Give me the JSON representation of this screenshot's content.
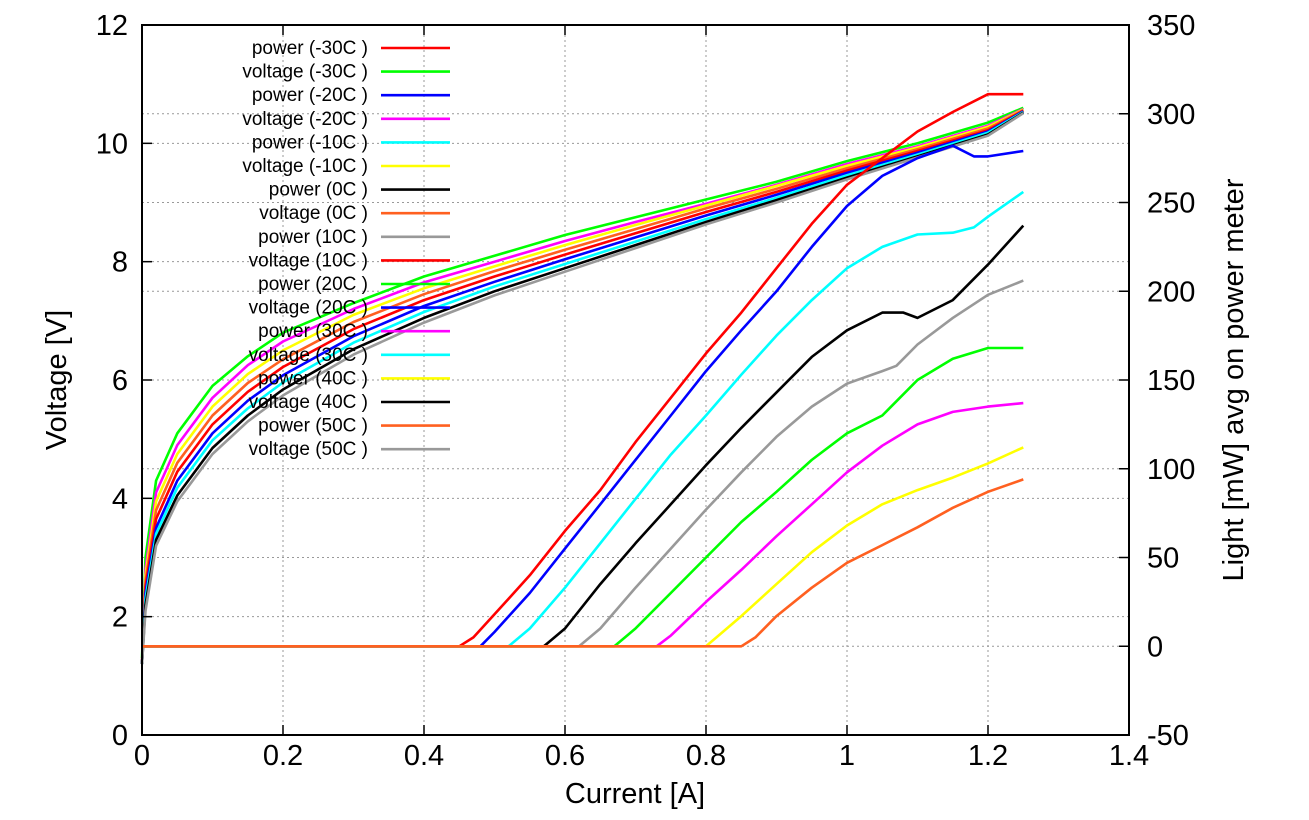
{
  "chart_data": {
    "type": "line",
    "title": "",
    "xlabel": "Current [A]",
    "ylabel": "Voltage [V]",
    "y2label": "Light [mW] avg on power meter",
    "xlim": [
      0,
      1.4
    ],
    "ylim": [
      0,
      12
    ],
    "y2lim": [
      -50,
      350
    ],
    "grid": true,
    "legend_position": "top-left",
    "x_ticks": [
      0,
      0.2,
      0.4,
      0.6,
      0.8,
      1,
      1.2,
      1.4
    ],
    "x_tick_labels": [
      "0",
      "0.2",
      "0.4",
      "0.6",
      "0.8",
      "1",
      "1.2",
      "1.4"
    ],
    "y_ticks": [
      0,
      2,
      4,
      6,
      8,
      10,
      12
    ],
    "y_tick_labels": [
      "0",
      "2",
      "4",
      "6",
      "8",
      "10",
      "12"
    ],
    "y2_ticks": [
      -50,
      0,
      50,
      100,
      150,
      200,
      250,
      300,
      350
    ],
    "y2_tick_labels": [
      "-50",
      "0",
      "50",
      "100",
      "150",
      "200",
      "250",
      "300",
      "350"
    ],
    "series": [
      {
        "name": "power (-30C )",
        "axis": "y2",
        "color": "#ff0000",
        "x": [
          0,
          0.45,
          0.47,
          0.5,
          0.55,
          0.6,
          0.65,
          0.7,
          0.75,
          0.8,
          0.85,
          0.9,
          0.95,
          1.0,
          1.05,
          1.1,
          1.15,
          1.2,
          1.25
        ],
        "y": [
          0,
          0,
          5,
          18,
          40,
          65,
          88,
          115,
          140,
          165,
          188,
          213,
          238,
          260,
          275,
          290,
          301,
          311,
          311
        ]
      },
      {
        "name": "voltage (-30C )",
        "axis": "y",
        "color": "#00ff00",
        "x": [
          0,
          0.005,
          0.02,
          0.05,
          0.1,
          0.15,
          0.2,
          0.3,
          0.4,
          0.5,
          0.6,
          0.7,
          0.8,
          0.9,
          1.0,
          1.1,
          1.2,
          1.25
        ],
        "y": [
          1.3,
          3.0,
          4.3,
          5.1,
          5.9,
          6.4,
          6.8,
          7.3,
          7.75,
          8.1,
          8.45,
          8.75,
          9.05,
          9.35,
          9.7,
          10.0,
          10.35,
          10.6
        ]
      },
      {
        "name": "power (-20C )",
        "axis": "y2",
        "color": "#0000ff",
        "x": [
          0,
          0.48,
          0.5,
          0.55,
          0.6,
          0.65,
          0.7,
          0.75,
          0.8,
          0.85,
          0.9,
          0.95,
          1.0,
          1.05,
          1.1,
          1.15,
          1.18,
          1.2,
          1.25
        ],
        "y": [
          0,
          0,
          8,
          30,
          55,
          80,
          105,
          130,
          155,
          178,
          200,
          225,
          248,
          265,
          275,
          282,
          276,
          276,
          279
        ]
      },
      {
        "name": "voltage (-20C )",
        "axis": "y",
        "color": "#ff00ff",
        "x": [
          0,
          0.005,
          0.02,
          0.05,
          0.1,
          0.15,
          0.2,
          0.3,
          0.4,
          0.5,
          0.6,
          0.7,
          0.8,
          0.9,
          1.0,
          1.1,
          1.2,
          1.25
        ],
        "y": [
          1.2,
          2.8,
          4.1,
          4.9,
          5.7,
          6.25,
          6.65,
          7.2,
          7.65,
          8.0,
          8.35,
          8.67,
          8.98,
          9.3,
          9.65,
          9.95,
          10.3,
          10.58
        ]
      },
      {
        "name": "power (-10C )",
        "axis": "y2",
        "color": "#00ffff",
        "x": [
          0,
          0.52,
          0.55,
          0.6,
          0.65,
          0.7,
          0.75,
          0.8,
          0.85,
          0.9,
          0.95,
          1.0,
          1.05,
          1.1,
          1.15,
          1.18,
          1.2,
          1.25
        ],
        "y": [
          0,
          0,
          10,
          33,
          58,
          83,
          108,
          130,
          153,
          175,
          195,
          213,
          225,
          232,
          233,
          236,
          242,
          256
        ]
      },
      {
        "name": "voltage (-10C )",
        "axis": "y",
        "color": "#ffff00",
        "x": [
          0,
          0.005,
          0.02,
          0.05,
          0.1,
          0.15,
          0.2,
          0.3,
          0.4,
          0.5,
          0.6,
          0.7,
          0.8,
          0.9,
          1.0,
          1.1,
          1.2,
          1.25
        ],
        "y": [
          1.2,
          2.7,
          3.95,
          4.75,
          5.55,
          6.1,
          6.5,
          7.1,
          7.55,
          7.92,
          8.28,
          8.62,
          8.95,
          9.28,
          9.62,
          9.93,
          10.28,
          10.57
        ]
      },
      {
        "name": "power (0C )",
        "axis": "y2",
        "color": "#000000",
        "x": [
          0,
          0.57,
          0.6,
          0.65,
          0.7,
          0.75,
          0.8,
          0.85,
          0.9,
          0.95,
          1.0,
          1.05,
          1.08,
          1.1,
          1.15,
          1.2,
          1.25
        ],
        "y": [
          0,
          0,
          10,
          35,
          58,
          80,
          102,
          123,
          143,
          163,
          178,
          188,
          188,
          185,
          195,
          215,
          237
        ]
      },
      {
        "name": "voltage (0C )",
        "axis": "y",
        "color": "#ff6020",
        "x": [
          0,
          0.005,
          0.02,
          0.05,
          0.1,
          0.15,
          0.2,
          0.3,
          0.4,
          0.5,
          0.6,
          0.7,
          0.8,
          0.9,
          1.0,
          1.1,
          1.2,
          1.25
        ],
        "y": [
          1.2,
          2.6,
          3.8,
          4.6,
          5.4,
          5.95,
          6.35,
          6.98,
          7.45,
          7.84,
          8.2,
          8.55,
          8.9,
          9.23,
          9.58,
          9.9,
          10.25,
          10.56
        ]
      },
      {
        "name": "power (10C )",
        "axis": "y2",
        "color": "#999999",
        "x": [
          0,
          0.62,
          0.65,
          0.7,
          0.75,
          0.8,
          0.85,
          0.9,
          0.95,
          1.0,
          1.05,
          1.07,
          1.1,
          1.15,
          1.2,
          1.25
        ],
        "y": [
          0,
          0,
          10,
          33,
          55,
          77,
          98,
          118,
          135,
          148,
          155,
          158,
          170,
          185,
          198,
          206
        ]
      },
      {
        "name": "voltage (10C )",
        "axis": "y",
        "color": "#ff0000",
        "x": [
          0,
          0.005,
          0.02,
          0.05,
          0.1,
          0.15,
          0.2,
          0.3,
          0.4,
          0.5,
          0.6,
          0.7,
          0.8,
          0.9,
          1.0,
          1.1,
          1.2,
          1.25
        ],
        "y": [
          1.2,
          2.5,
          3.65,
          4.45,
          5.25,
          5.8,
          6.22,
          6.86,
          7.35,
          7.75,
          8.12,
          8.48,
          8.84,
          9.18,
          9.54,
          9.87,
          10.22,
          10.55
        ]
      },
      {
        "name": "power (20C )",
        "axis": "y2",
        "color": "#00ff00",
        "x": [
          0,
          0.67,
          0.7,
          0.75,
          0.8,
          0.85,
          0.9,
          0.95,
          1.0,
          1.05,
          1.1,
          1.15,
          1.2,
          1.25
        ],
        "y": [
          0,
          0,
          10,
          30,
          50,
          70,
          87,
          105,
          120,
          130,
          150,
          162,
          168,
          168
        ]
      },
      {
        "name": "voltage (20C )",
        "axis": "y",
        "color": "#0000ff",
        "x": [
          0,
          0.005,
          0.02,
          0.05,
          0.1,
          0.15,
          0.2,
          0.3,
          0.4,
          0.5,
          0.6,
          0.7,
          0.8,
          0.9,
          1.0,
          1.1,
          1.2,
          1.25
        ],
        "y": [
          1.2,
          2.4,
          3.5,
          4.3,
          5.1,
          5.65,
          6.08,
          6.74,
          7.25,
          7.66,
          8.04,
          8.41,
          8.78,
          9.13,
          9.5,
          9.84,
          10.2,
          10.54
        ]
      },
      {
        "name": "power (30C )",
        "axis": "y2",
        "color": "#ff00ff",
        "x": [
          0,
          0.73,
          0.75,
          0.8,
          0.85,
          0.9,
          0.95,
          1.0,
          1.05,
          1.1,
          1.15,
          1.2,
          1.25
        ],
        "y": [
          0,
          0,
          6,
          25,
          43,
          62,
          80,
          98,
          113,
          125,
          132,
          135,
          137
        ]
      },
      {
        "name": "voltage (30C )",
        "axis": "y",
        "color": "#00ffff",
        "x": [
          0,
          0.005,
          0.02,
          0.05,
          0.1,
          0.15,
          0.2,
          0.3,
          0.4,
          0.5,
          0.6,
          0.7,
          0.8,
          0.9,
          1.0,
          1.1,
          1.2,
          1.25
        ],
        "y": [
          1.2,
          2.3,
          3.4,
          4.18,
          4.98,
          5.52,
          5.96,
          6.63,
          7.15,
          7.58,
          7.96,
          8.34,
          8.72,
          9.08,
          9.46,
          9.81,
          10.18,
          10.53
        ]
      },
      {
        "name": "power (40C )",
        "axis": "y2",
        "color": "#ffff00",
        "x": [
          0,
          0.8,
          0.85,
          0.9,
          0.95,
          1.0,
          1.05,
          1.1,
          1.15,
          1.2,
          1.25
        ],
        "y": [
          0,
          0,
          17,
          35,
          53,
          68,
          80,
          88,
          95,
          103,
          112
        ]
      },
      {
        "name": "voltage (40C )",
        "axis": "y",
        "color": "#000000",
        "x": [
          0,
          0.005,
          0.02,
          0.05,
          0.1,
          0.15,
          0.2,
          0.3,
          0.4,
          0.5,
          0.6,
          0.7,
          0.8,
          0.9,
          1.0,
          1.1,
          1.2,
          1.25
        ],
        "y": [
          1.2,
          2.2,
          3.3,
          4.05,
          4.85,
          5.4,
          5.84,
          6.52,
          7.05,
          7.5,
          7.89,
          8.28,
          8.67,
          9.04,
          9.42,
          9.78,
          10.15,
          10.52
        ]
      },
      {
        "name": "power (50C )",
        "axis": "y2",
        "color": "#ff6020",
        "x": [
          0,
          0.85,
          0.87,
          0.9,
          0.95,
          1.0,
          1.05,
          1.1,
          1.15,
          1.2,
          1.25
        ],
        "y": [
          0,
          0,
          5,
          17,
          33,
          47,
          57,
          67,
          78,
          87,
          94
        ]
      },
      {
        "name": "voltage (50C )",
        "axis": "y",
        "color": "#999999",
        "x": [
          0,
          0.005,
          0.02,
          0.05,
          0.1,
          0.15,
          0.2,
          0.3,
          0.4,
          0.5,
          0.6,
          0.7,
          0.8,
          0.9,
          1.0,
          1.1,
          1.2,
          1.25
        ],
        "y": [
          1.2,
          2.1,
          3.2,
          3.95,
          4.75,
          5.3,
          5.74,
          6.43,
          6.97,
          7.43,
          7.83,
          8.23,
          8.63,
          9.0,
          9.39,
          9.76,
          10.13,
          10.51
        ]
      }
    ]
  }
}
